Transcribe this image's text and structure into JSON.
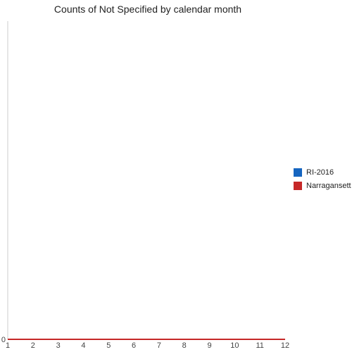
{
  "chart_data": {
    "type": "line",
    "title": "Counts of Not Specified by calendar month",
    "xlabel": "",
    "ylabel": "",
    "x": [
      1,
      2,
      3,
      4,
      5,
      6,
      7,
      8,
      9,
      10,
      11,
      12
    ],
    "xlim": [
      1,
      12
    ],
    "ylim": [
      0,
      1
    ],
    "y_ticks": [
      0
    ],
    "grid": false,
    "legend": "right",
    "series": [
      {
        "name": "RI-2016",
        "color": "#1565c0",
        "values": [
          0,
          0,
          0,
          0,
          0,
          0,
          0,
          0,
          0,
          0,
          0,
          0
        ]
      },
      {
        "name": "Narragansett",
        "color": "#c62828",
        "values": [
          0,
          0,
          0,
          0,
          0,
          0,
          0,
          0,
          0,
          0,
          0,
          0
        ]
      }
    ]
  }
}
